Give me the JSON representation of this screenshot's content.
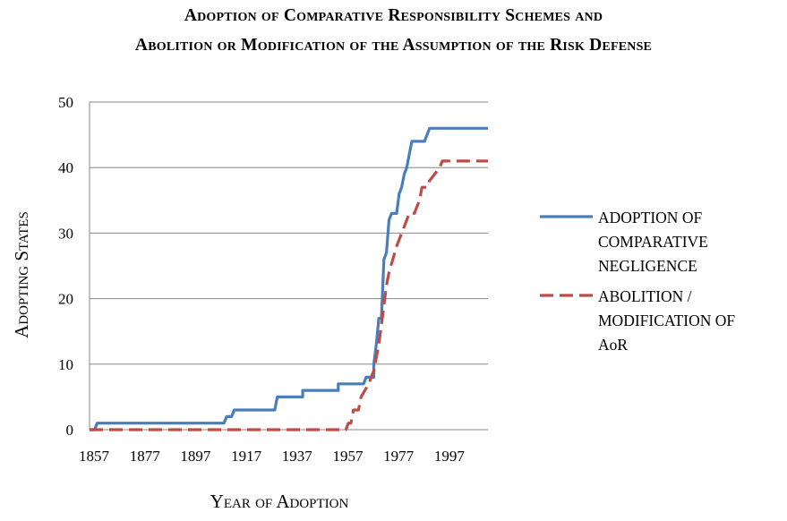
{
  "title_line1": "Adoption of Comparative Responsibility Schemes and",
  "title_line2": "Abolition or Modification of the Assumption of the Risk Defense",
  "chart_data": {
    "type": "line",
    "xlabel": "Year of Adoption",
    "ylabel": "Adopting States",
    "xlim": [
      1857,
      2014
    ],
    "ylim": [
      0,
      50
    ],
    "xticks": [
      1857,
      1877,
      1897,
      1917,
      1937,
      1957,
      1977,
      1997
    ],
    "yticks": [
      0,
      10,
      20,
      30,
      40,
      50
    ],
    "grid": "horizontal",
    "legend_position": "right",
    "series": [
      {
        "name_lines": [
          "ADOPTION OF",
          "COMPARATIVE",
          "NEGLIGENCE"
        ],
        "color": "#4A7EBB",
        "style": "solid",
        "points": [
          [
            1857,
            0
          ],
          [
            1859,
            0
          ],
          [
            1860,
            1
          ],
          [
            1910,
            1
          ],
          [
            1911,
            2
          ],
          [
            1913,
            2
          ],
          [
            1914,
            3
          ],
          [
            1930,
            3
          ],
          [
            1931,
            5
          ],
          [
            1941,
            5
          ],
          [
            1941,
            6
          ],
          [
            1955,
            6
          ],
          [
            1955,
            7
          ],
          [
            1965,
            7
          ],
          [
            1966,
            8
          ],
          [
            1969,
            8
          ],
          [
            1969,
            10
          ],
          [
            1970,
            13
          ],
          [
            1971,
            17
          ],
          [
            1972,
            17
          ],
          [
            1973,
            26
          ],
          [
            1974,
            27
          ],
          [
            1975,
            32
          ],
          [
            1976,
            33
          ],
          [
            1978,
            33
          ],
          [
            1979,
            36
          ],
          [
            1980,
            37
          ],
          [
            1981,
            39
          ],
          [
            1982,
            40
          ],
          [
            1983,
            42
          ],
          [
            1984,
            44
          ],
          [
            1989,
            44
          ],
          [
            1991,
            46
          ],
          [
            2014,
            46
          ]
        ]
      },
      {
        "name_lines": [
          "ABOLITION /",
          "MODIFICATION OF",
          "AoR"
        ],
        "color": "#BE4B48",
        "style": "dashed",
        "points": [
          [
            1857,
            0
          ],
          [
            1958,
            0
          ],
          [
            1959,
            1
          ],
          [
            1960,
            1
          ],
          [
            1961,
            3
          ],
          [
            1963,
            3
          ],
          [
            1964,
            5
          ],
          [
            1967,
            7
          ],
          [
            1969,
            9
          ],
          [
            1971,
            13
          ],
          [
            1972,
            16
          ],
          [
            1974,
            22
          ],
          [
            1975,
            24
          ],
          [
            1978,
            28
          ],
          [
            1981,
            31
          ],
          [
            1983,
            33
          ],
          [
            1985,
            33
          ],
          [
            1986,
            34
          ],
          [
            1987,
            35
          ],
          [
            1988,
            37
          ],
          [
            1990,
            37
          ],
          [
            1991,
            38
          ],
          [
            1993,
            39
          ],
          [
            1995,
            40
          ],
          [
            1996,
            41
          ],
          [
            2014,
            41
          ]
        ]
      }
    ]
  }
}
